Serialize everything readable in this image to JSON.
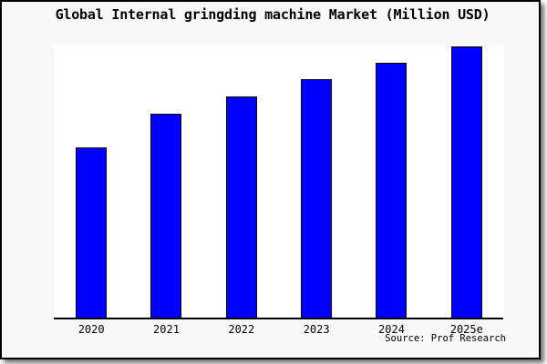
{
  "window": {
    "page_background": "#ffffff",
    "figure_background": "#f8f8f8",
    "plot_background": "#ffffff",
    "frame_border_color": "#000000"
  },
  "chart_data": {
    "type": "bar",
    "title": "Global Internal gringding machine Market (Million USD)",
    "categories": [
      "2020",
      "2021",
      "2022",
      "2023",
      "2024",
      "2025e"
    ],
    "values": [
      62.7,
      74.9,
      81.3,
      87.6,
      93.7,
      99.7
    ],
    "value_scale_max": 100,
    "value_note": "No y-axis ticks, gridlines or data labels are shown; values are relative bar heights as percent of plot height",
    "xlabel": "",
    "ylabel": "",
    "grid": false,
    "legend": false,
    "bar_color": "#0000ff",
    "bar_edge_color": "#000000",
    "axis_color": "#000000",
    "source": "Source: Prof Research"
  }
}
